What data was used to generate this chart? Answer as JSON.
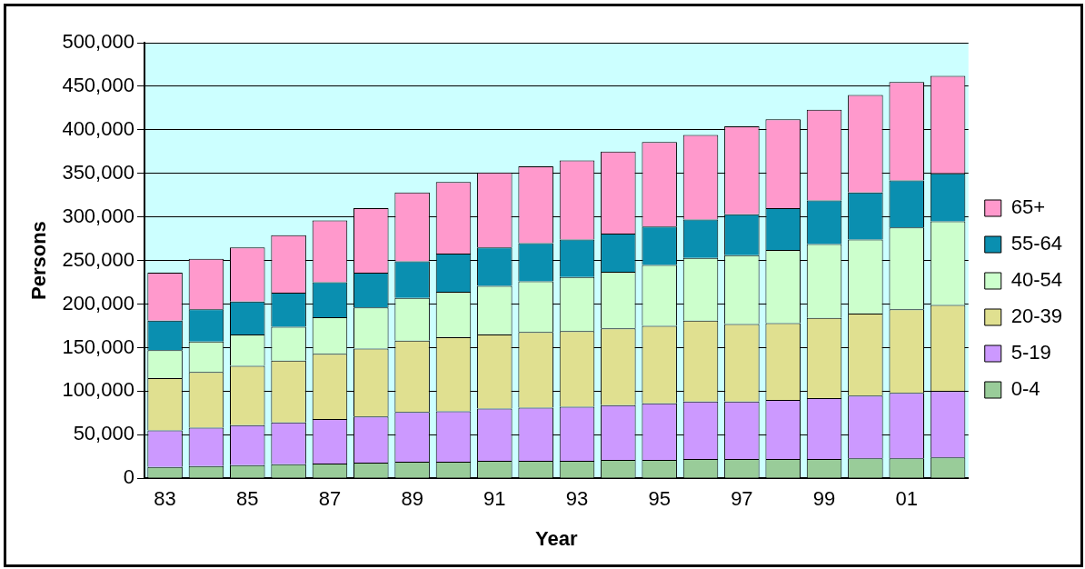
{
  "chart_data": {
    "type": "bar",
    "stacked": true,
    "xlabel": "Year",
    "ylabel": "Persons",
    "categories": [
      "83",
      null,
      "85",
      null,
      "87",
      null,
      "89",
      null,
      "91",
      null,
      "93",
      null,
      "95",
      null,
      "97",
      null,
      "99",
      null,
      "01",
      null
    ],
    "series": [
      {
        "name": "0-4",
        "color": "#99cc99",
        "values": [
          13000,
          14000,
          15000,
          16000,
          17000,
          18000,
          19000,
          19000,
          20000,
          20000,
          20000,
          21000,
          21000,
          22000,
          22000,
          22000,
          22000,
          23000,
          23000,
          24000
        ]
      },
      {
        "name": "5-19",
        "color": "#cc99ff",
        "values": [
          42000,
          44000,
          46000,
          48000,
          51000,
          53000,
          57000,
          58000,
          60000,
          61000,
          62000,
          63000,
          65000,
          66000,
          66000,
          68000,
          70000,
          72000,
          75000,
          76000
        ]
      },
      {
        "name": "20-39",
        "color": "#e0e090",
        "values": [
          60000,
          64000,
          68000,
          71000,
          75000,
          78000,
          82000,
          85000,
          85000,
          87000,
          87000,
          88000,
          89000,
          93000,
          89000,
          88000,
          92000,
          94000,
          96000,
          99000
        ]
      },
      {
        "name": "40-54",
        "color": "#ccffcc",
        "values": [
          32000,
          35000,
          36000,
          39000,
          42000,
          47000,
          49000,
          52000,
          56000,
          58000,
          62000,
          65000,
          70000,
          72000,
          79000,
          84000,
          85000,
          85000,
          94000,
          96000
        ]
      },
      {
        "name": "55-64",
        "color": "#0a8fb0",
        "values": [
          34000,
          37000,
          38000,
          39000,
          40000,
          40000,
          42000,
          44000,
          44000,
          44000,
          43000,
          44000,
          44000,
          44000,
          47000,
          48000,
          50000,
          54000,
          54000,
          55000
        ]
      },
      {
        "name": "65+",
        "color": "#ff99cc",
        "values": [
          55000,
          58000,
          62000,
          66000,
          71000,
          74000,
          79000,
          82000,
          86000,
          88000,
          91000,
          94000,
          97000,
          97000,
          101000,
          102000,
          104000,
          112000,
          113000,
          112000
        ]
      }
    ],
    "ylim": [
      0,
      500000
    ],
    "yticks": [
      0,
      {
        "value": 50000,
        "label": "50,000"
      },
      {
        "value": 100000,
        "label": "100,000"
      },
      {
        "value": 150000,
        "label": "150,000"
      },
      {
        "value": 200000,
        "label": "200,000"
      },
      {
        "value": 250000,
        "label": "250,000"
      },
      {
        "value": 300000,
        "label": "300,000"
      },
      {
        "value": 350000,
        "label": "350,000"
      },
      {
        "value": 400000,
        "label": "400,000"
      },
      {
        "value": 450000,
        "label": "450,000"
      },
      {
        "value": 500000,
        "label": "500,000"
      }
    ],
    "grid": "y",
    "legend": "right"
  }
}
